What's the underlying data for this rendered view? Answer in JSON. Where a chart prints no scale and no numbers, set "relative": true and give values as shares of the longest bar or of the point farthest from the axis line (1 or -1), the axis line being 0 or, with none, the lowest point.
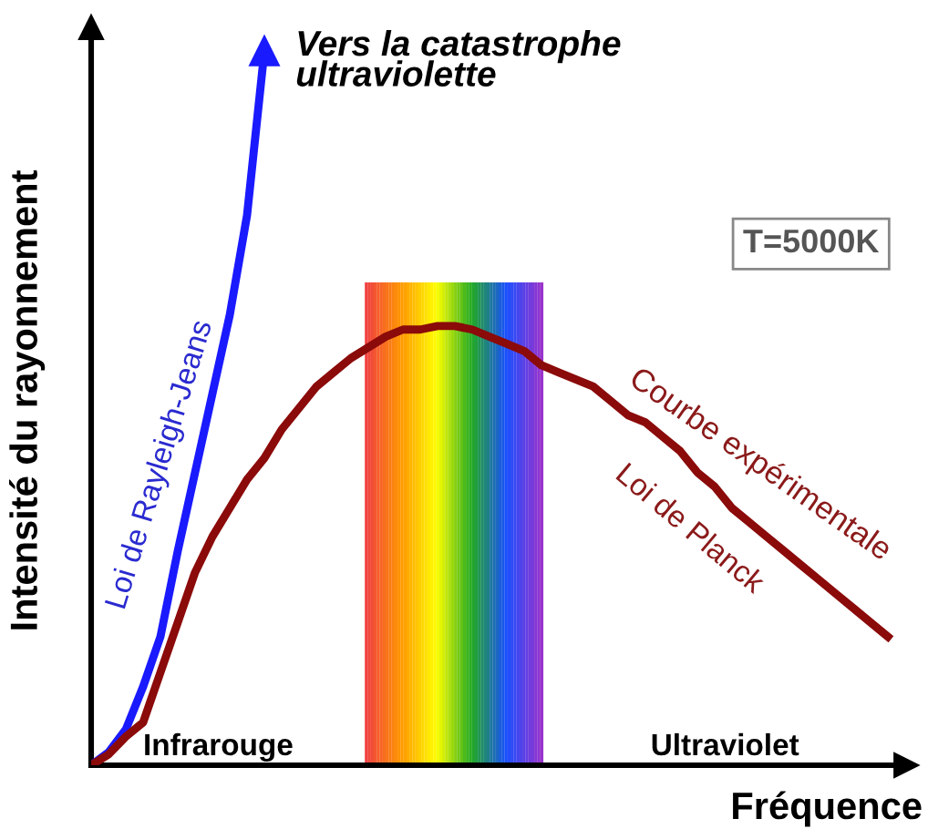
{
  "chart_data": {
    "type": "line",
    "relative": true,
    "xlabel": "Fréquence",
    "ylabel": "Intensité du rayonnement",
    "categories": [
      null,
      null,
      null,
      null,
      null,
      null,
      null,
      null,
      null,
      null,
      null,
      null,
      null,
      null,
      null,
      null,
      null,
      null,
      null,
      null,
      null,
      null,
      null,
      null,
      null,
      null,
      null,
      null,
      null,
      null,
      null,
      null,
      null,
      null,
      null,
      null,
      null,
      null,
      null,
      null,
      null,
      null,
      null,
      null,
      null,
      null,
      null
    ],
    "series": [
      {
        "name": "Loi de Rayleigh-Jeans",
        "color": "#1a1aff",
        "values": [
          0,
          0.018,
          0.05,
          0.11,
          0.18,
          0.3,
          0.41,
          0.52,
          0.63,
          0.77,
          1.0,
          null,
          null,
          null,
          null,
          null,
          null,
          null,
          null,
          null,
          null,
          null,
          null,
          null,
          null,
          null,
          null,
          null,
          null,
          null,
          null,
          null,
          null,
          null,
          null,
          null,
          null,
          null,
          null,
          null,
          null,
          null,
          null,
          null,
          null,
          null,
          null
        ]
      },
      {
        "name": "Loi de Planck",
        "color": "#8b0a0a",
        "values": [
          0,
          0.015,
          0.04,
          0.06,
          0.13,
          0.2,
          0.27,
          0.32,
          0.36,
          0.4,
          0.43,
          0.47,
          0.5,
          0.53,
          0.55,
          0.57,
          0.585,
          0.6,
          0.61,
          0.61,
          0.615,
          0.615,
          0.61,
          0.6,
          0.59,
          0.58,
          0.56,
          0.55,
          0.54,
          0.53,
          0.51,
          0.49,
          0.48,
          0.46,
          0.44,
          0.41,
          0.39,
          0.36,
          0.34,
          0.32,
          0.3,
          0.28,
          0.26,
          0.24,
          0.22,
          0.2,
          0.18
        ]
      }
    ],
    "annotations": [
      "Vers la catastrophe ultraviolette",
      "T=5000K",
      "Courbe expérimentale",
      "Infrarouge",
      "Ultraviolet"
    ],
    "grid": false,
    "legend": false,
    "marker": "none",
    "line_style": "solid"
  }
}
